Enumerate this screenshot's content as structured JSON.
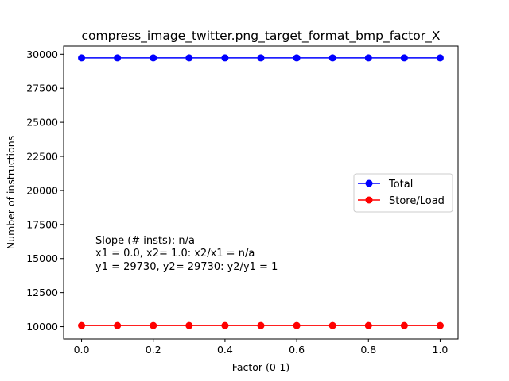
{
  "chart_data": {
    "type": "line",
    "title": "compress_image_twitter.png_target_format_bmp_factor_X",
    "xlabel": "Factor (0-1)",
    "ylabel": "Number of instructions",
    "x": [
      0.0,
      0.1,
      0.2,
      0.3,
      0.4,
      0.5,
      0.6,
      0.7,
      0.8,
      0.9,
      1.0
    ],
    "xlim": [
      -0.05,
      1.05
    ],
    "ylim": [
      9100,
      30600
    ],
    "xticks": [
      0.0,
      0.2,
      0.4,
      0.6,
      0.8,
      1.0
    ],
    "xtick_labels": [
      "0.0",
      "0.2",
      "0.4",
      "0.6",
      "0.8",
      "1.0"
    ],
    "yticks": [
      10000,
      12500,
      15000,
      17500,
      20000,
      22500,
      25000,
      27500,
      30000
    ],
    "ytick_labels": [
      "10000",
      "12500",
      "15000",
      "17500",
      "20000",
      "22500",
      "25000",
      "27500",
      "30000"
    ],
    "grid": false,
    "legend_position": "center-right",
    "series": [
      {
        "name": "Total",
        "color": "#0000ff",
        "marker": "circle",
        "values": [
          29730,
          29730,
          29730,
          29730,
          29730,
          29730,
          29730,
          29730,
          29730,
          29730,
          29730
        ]
      },
      {
        "name": "Store/Load",
        "color": "#ff0000",
        "marker": "circle",
        "values": [
          10080,
          10080,
          10080,
          10080,
          10080,
          10080,
          10080,
          10080,
          10080,
          10080,
          10080
        ]
      }
    ],
    "annotations": [
      "Slope (# insts): n/a",
      "x1 = 0.0, x2= 1.0: x2/x1 = n/a",
      "y1 = 29730, y2= 29730: y2/y1 = 1"
    ]
  }
}
